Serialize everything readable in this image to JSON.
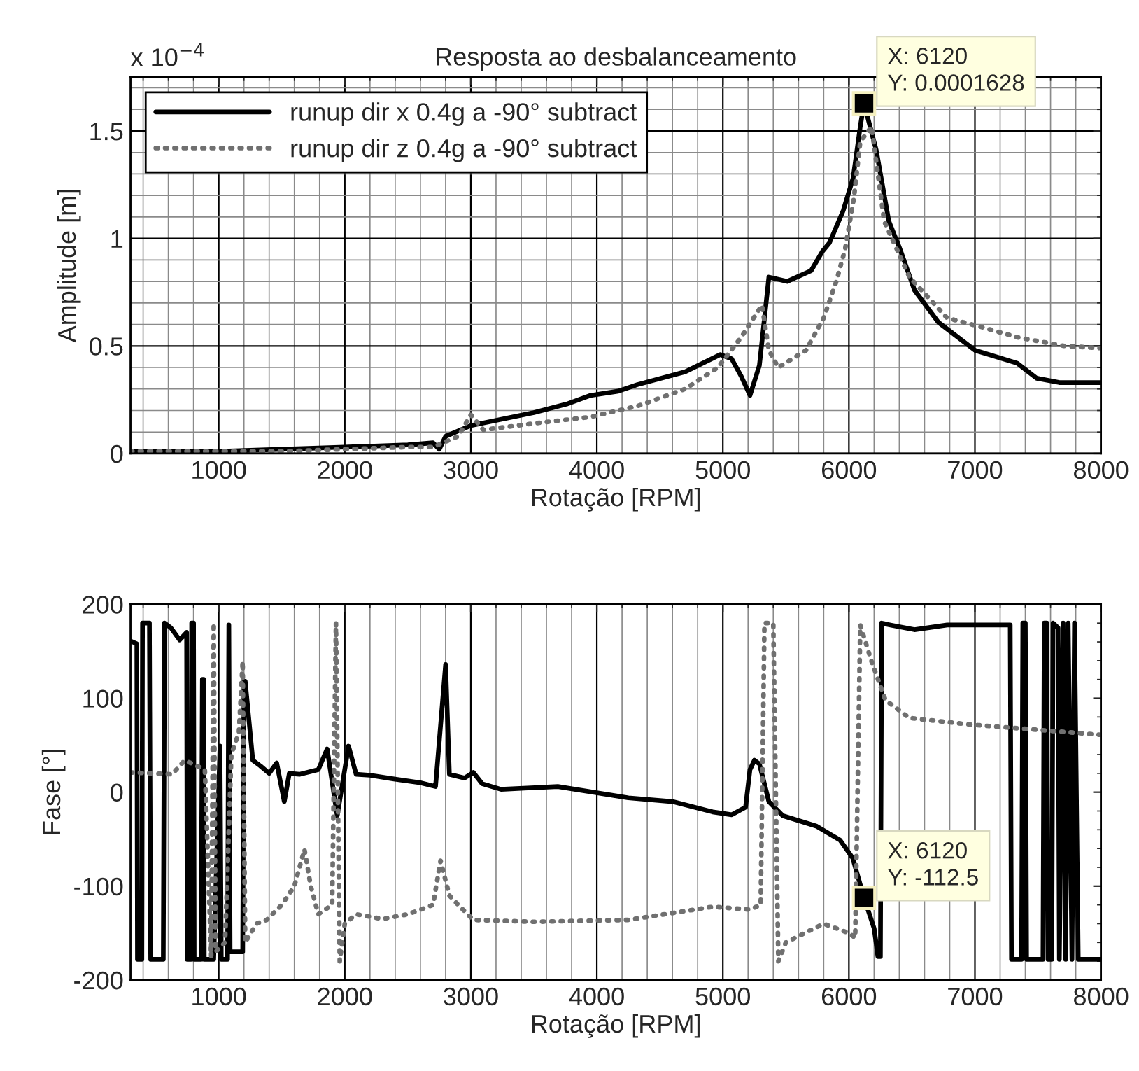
{
  "chart_data": [
    {
      "type": "line",
      "title": "Resposta ao desbalanceamento",
      "xlabel": "Rotação [RPM]",
      "ylabel": "Amplitude [m]",
      "xlim": [
        300,
        8000
      ],
      "xticks": [
        1000,
        2000,
        3000,
        4000,
        5000,
        6000,
        7000,
        8000
      ],
      "ylim": [
        0,
        1.75
      ],
      "yticks": [
        0,
        0.5,
        1,
        1.5
      ],
      "grid": true,
      "legend": "top left",
      "series": [
        {
          "name": "runup dir x 0.4g a -90° subtract",
          "color": "#000000",
          "line_style": "solid",
          "x": [
            300,
            600,
            1000,
            1500,
            2000,
            2500,
            2700,
            2750,
            2800,
            3000,
            3500,
            3760,
            3950,
            4170,
            4320,
            4700,
            4980,
            5070,
            5145,
            5215,
            5290,
            5365,
            5510,
            5700,
            5790,
            5846,
            5955,
            6033,
            6090,
            6120,
            6217,
            6317,
            6406,
            6520,
            6710,
            7000,
            7335,
            7490,
            7670,
            8000
          ],
          "values": [
            0.01,
            0.01,
            0.01,
            0.02,
            0.03,
            0.04,
            0.05,
            0.02,
            0.08,
            0.13,
            0.19,
            0.23,
            0.27,
            0.29,
            0.32,
            0.38,
            0.46,
            0.44,
            0.36,
            0.27,
            0.41,
            0.82,
            0.8,
            0.85,
            0.94,
            0.98,
            1.13,
            1.28,
            1.52,
            1.628,
            1.41,
            1.08,
            0.95,
            0.76,
            0.61,
            0.48,
            0.42,
            0.35,
            0.33,
            0.33
          ]
        },
        {
          "name": "runup dir z 0.4g a -90° subtract",
          "color": "#707070",
          "line_style": "dotted",
          "x": [
            300,
            1000,
            1500,
            2000,
            2500,
            2700,
            2900,
            3000,
            3100,
            3500,
            3950,
            4320,
            4700,
            4960,
            5145,
            5310,
            5365,
            5440,
            5660,
            5800,
            5900,
            5970,
            6040,
            6090,
            6180,
            6280,
            6480,
            6780,
            7040,
            7340,
            7710,
            8000
          ],
          "values": [
            0.01,
            0.01,
            0.01,
            0.02,
            0.03,
            0.03,
            0.08,
            0.18,
            0.11,
            0.14,
            0.17,
            0.22,
            0.3,
            0.4,
            0.54,
            0.69,
            0.48,
            0.4,
            0.48,
            0.63,
            0.8,
            0.95,
            1.19,
            1.45,
            1.52,
            1.08,
            0.82,
            0.63,
            0.59,
            0.54,
            0.5,
            0.49
          ]
        }
      ],
      "annotations": [
        "x 10$^{−4}$",
        {
          "text": "X: 6120\nY: 0.0001628",
          "x": 6120,
          "y": 1.628
        }
      ]
    },
    {
      "type": "line",
      "xlabel": "Rotação [RPM]",
      "ylabel": "Fase [°]",
      "xlim": [
        300,
        8000
      ],
      "xticks": [
        1000,
        2000,
        3000,
        4000,
        5000,
        6000,
        7000,
        8000
      ],
      "ylim": [
        -200,
        200
      ],
      "yticks": [
        -200,
        -100,
        0,
        100,
        200
      ],
      "grid": "x",
      "series": [
        {
          "color": "#000000",
          "line_style": "solid",
          "x": [
            300,
            350,
            355,
            390,
            395,
            450,
            460,
            560,
            570,
            620,
            690,
            745,
            750,
            780,
            785,
            800,
            805,
            860,
            870,
            880,
            885,
            960,
            1010,
            1020,
            1070,
            1080,
            1090,
            1190,
            1200,
            1210,
            1270,
            1330,
            1400,
            1460,
            1520,
            1560,
            1640,
            1790,
            1860,
            1940,
            2030,
            2090,
            2200,
            2390,
            2600,
            2720,
            2800,
            2830,
            2950,
            3020,
            3090,
            3240,
            3690,
            4250,
            4600,
            4920,
            5070,
            5180,
            5215,
            5250,
            5290,
            5365,
            5475,
            5740,
            5930,
            6030,
            6120,
            6200,
            6230,
            6250,
            6260,
            6330,
            6520,
            6780,
            7280,
            7290,
            7370,
            7380,
            7400,
            7410,
            7540,
            7550,
            7570,
            7580,
            7610,
            7620,
            7660,
            7670,
            7700,
            7720,
            7740,
            7770,
            7790,
            7820,
            8000
          ],
          "values": [
            161,
            158,
            -178,
            -178,
            180,
            180,
            -178,
            -178,
            180,
            175,
            162,
            170,
            -178,
            -178,
            180,
            180,
            -178,
            -178,
            120,
            120,
            -178,
            -178,
            49,
            -178,
            -178,
            178,
            -170,
            -170,
            118,
            118,
            34,
            28,
            20,
            31,
            -10,
            20,
            19,
            24,
            46,
            -25,
            49,
            19,
            18,
            14,
            10,
            6,
            136,
            19,
            15,
            21,
            9,
            3,
            6,
            -6,
            -10,
            -21,
            -24,
            -16,
            24,
            34,
            30,
            -10,
            -25,
            -36,
            -51,
            -70,
            -112.5,
            -145,
            -175,
            -175,
            180,
            178,
            173,
            178,
            178,
            -178,
            -178,
            180,
            180,
            -178,
            -178,
            180,
            180,
            -178,
            -178,
            180,
            175,
            -178,
            180,
            -178,
            180,
            -178,
            180,
            -178,
            -178
          ]
        },
        {
          "color": "#707070",
          "line_style": "dotted",
          "x": [
            300,
            630,
            730,
            890,
            940,
            960,
            975,
            1050,
            1100,
            1160,
            1190,
            1210,
            1300,
            1380,
            1500,
            1600,
            1680,
            1730,
            1790,
            1900,
            1930,
            1960,
            2000,
            2090,
            2300,
            2500,
            2700,
            2760,
            2830,
            2900,
            3020,
            3500,
            4250,
            4920,
            5215,
            5300,
            5330,
            5400,
            5440,
            5500,
            5800,
            6000,
            6050,
            6090,
            6180,
            6290,
            6480,
            6960,
            7530,
            8000
          ],
          "values": [
            21,
            19,
            34,
            24,
            -175,
            180,
            -170,
            -160,
            40,
            64,
            139,
            -160,
            -140,
            -136,
            -120,
            -100,
            -61,
            -100,
            -130,
            -120,
            180,
            -180,
            -140,
            -130,
            -135,
            -130,
            -120,
            -73,
            -110,
            -120,
            -136,
            -138,
            -136,
            -122,
            -125,
            -120,
            180,
            180,
            -180,
            -160,
            -140,
            -150,
            -155,
            178,
            139,
            98,
            79,
            72,
            66,
            61
          ]
        }
      ],
      "annotations": [
        {
          "text": "X: 6120\nY: -112.5",
          "x": 6120,
          "y": -112.5
        }
      ]
    }
  ]
}
